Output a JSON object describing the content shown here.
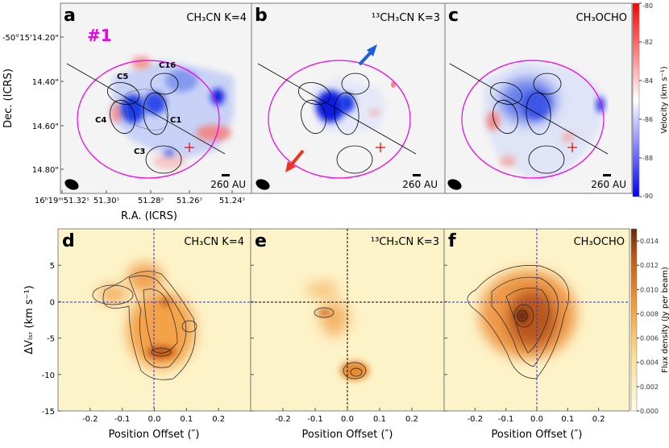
{
  "chart_data": [
    {
      "type": "heatmap",
      "panel": "a",
      "title": "CH₃CN K=4",
      "region_label": "#1",
      "component_labels": [
        "C5",
        "C16",
        "C4",
        "C1",
        "C3"
      ],
      "xlabel": "R.A. (ICRS)",
      "ylabel": "Dec. (ICRS)",
      "x_ticks": [
        "16ʰ19ᵐ51.32ˢ",
        "51.30ˢ",
        "51.28ˢ",
        "51.26ˢ",
        "51.24ˢ"
      ],
      "y_ticks": [
        "-50°15'14.20\"",
        "14.40\"",
        "14.60\"",
        "14.80\""
      ],
      "scale_bar": "260 AU",
      "colormap": "bwr"
    },
    {
      "type": "heatmap",
      "panel": "b",
      "title": "¹³CH₃CN K=3",
      "scale_bar": "260 AU",
      "arrows": [
        {
          "color": "#1a5fe0",
          "direction": "north-east"
        },
        {
          "color": "#ee3322",
          "direction": "south-west"
        }
      ]
    },
    {
      "type": "heatmap",
      "panel": "c",
      "title": "CH₃OCHO",
      "scale_bar": "260 AU",
      "colorbar": {
        "label": "Velocity (km s⁻¹)",
        "range": [
          -90,
          -80
        ],
        "ticks": [
          "-80",
          "-82",
          "-84",
          "-86",
          "-88",
          "-90"
        ]
      }
    },
    {
      "type": "heatmap",
      "panel": "d",
      "title": "CH₃CN K=4",
      "xlabel": "Position Offset (″)",
      "ylabel": "ΔVₗₛᵣ (km s⁻¹)",
      "xlim": [
        -0.3,
        0.3
      ],
      "ylim": [
        -15,
        10
      ],
      "x_ticks": [
        -0.2,
        -0.1,
        0.0,
        0.1,
        0.2
      ],
      "x_tick_labels": [
        "-0.2",
        "-0.1",
        "0.0",
        "0.1",
        "0.2"
      ],
      "y_ticks": [
        5,
        0,
        -5,
        -10,
        -15
      ],
      "y_tick_labels": [
        "5",
        "0",
        "-5",
        "-10",
        "-15"
      ],
      "reference_lines": {
        "x": 0,
        "y": 0,
        "color": "#2233dd"
      }
    },
    {
      "type": "heatmap",
      "panel": "e",
      "title": "¹³CH₃CN K=3",
      "xlabel": "Position Offset (″)",
      "xlim": [
        -0.3,
        0.3
      ],
      "ylim": [
        -15,
        10
      ],
      "x_tick_labels": [
        "-0.2",
        "-0.1",
        "0.0",
        "0.1",
        "0.2"
      ],
      "reference_lines": {
        "x": 0,
        "y": 0,
        "color": "#000000"
      }
    },
    {
      "type": "heatmap",
      "panel": "f",
      "title": "CH₃OCHO",
      "xlabel": "Position Offset (″)",
      "xlim": [
        -0.3,
        0.3
      ],
      "ylim": [
        -15,
        10
      ],
      "x_tick_labels": [
        "-0.2",
        "-0.1",
        "0.0",
        "0.1",
        "0.2"
      ],
      "reference_lines": {
        "x": 0,
        "y": 0,
        "color": "#2233dd"
      },
      "colorbar": {
        "label": "Flux density (Jy per beam)",
        "range": [
          0,
          0.015
        ],
        "ticks": [
          "0.014",
          "0.012",
          "0.010",
          "0.008",
          "0.006",
          "0.004",
          "0.002",
          "0.000"
        ],
        "colormap": "YlOrBr"
      }
    }
  ]
}
